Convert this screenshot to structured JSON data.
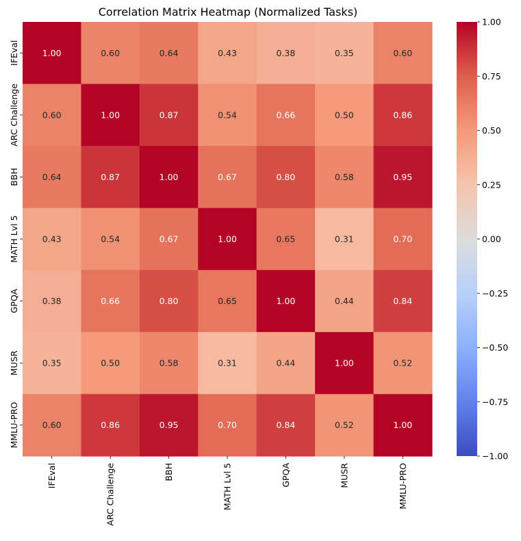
{
  "chart_data": {
    "type": "heatmap",
    "title": "Correlation Matrix Heatmap (Normalized Tasks)",
    "xlabel": "",
    "ylabel": "",
    "categories": [
      "IFEval",
      "ARC Challenge",
      "BBH",
      "MATH Lvl 5",
      "GPQA",
      "MUSR",
      "MMLU-PRO"
    ],
    "values": [
      [
        1.0,
        0.6,
        0.64,
        0.43,
        0.38,
        0.35,
        0.6
      ],
      [
        0.6,
        1.0,
        0.87,
        0.54,
        0.66,
        0.5,
        0.86
      ],
      [
        0.64,
        0.87,
        1.0,
        0.67,
        0.8,
        0.58,
        0.95
      ],
      [
        0.43,
        0.54,
        0.67,
        1.0,
        0.65,
        0.31,
        0.7
      ],
      [
        0.38,
        0.66,
        0.8,
        0.65,
        1.0,
        0.44,
        0.84
      ],
      [
        0.35,
        0.5,
        0.58,
        0.31,
        0.44,
        1.0,
        0.52
      ],
      [
        0.6,
        0.86,
        0.95,
        0.7,
        0.84,
        0.52,
        1.0
      ]
    ],
    "colorbar": {
      "colormap": "coolwarm",
      "range": [
        -1.0,
        1.0
      ],
      "ticks": [
        1.0,
        0.75,
        0.5,
        0.25,
        0.0,
        -0.25,
        -0.5,
        -0.75,
        -1.0
      ],
      "tick_labels": [
        "1.00",
        "0.75",
        "0.50",
        "0.25",
        "0.00",
        "−0.25",
        "−0.50",
        "−0.75",
        "−1.00"
      ]
    },
    "annotation_format": "2 decimals",
    "grid": false
  }
}
